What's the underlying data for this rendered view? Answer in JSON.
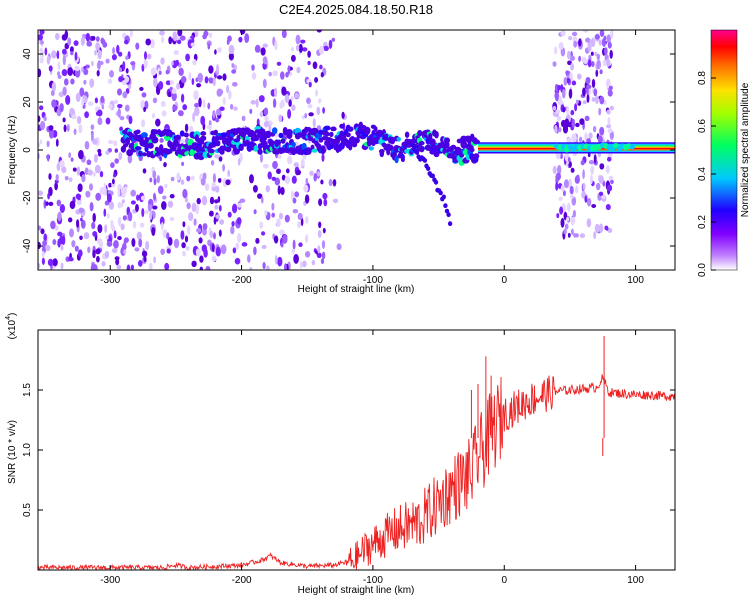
{
  "title": "C2E4.2025.084.18.50.R18",
  "colors": {
    "snr_line": "#ee2222",
    "spectrogram_scatter": "#6a00d8",
    "colormap": [
      "#ffffff",
      "#a000ff",
      "#2000ff",
      "#00c8ff",
      "#00ff40",
      "#ffff00",
      "#ff8000",
      "#ff0000",
      "#ff00a0"
    ]
  },
  "chart_data": [
    {
      "type": "heatmap",
      "title": "",
      "xlabel": "Height of straight line (km)",
      "ylabel": "Frequency (Hz)",
      "xlim": [
        -355,
        130
      ],
      "ylim": [
        -50,
        50
      ],
      "xticks": [
        -300,
        -200,
        -100,
        0,
        100
      ],
      "yticks": [
        -40,
        -20,
        0,
        20,
        40
      ],
      "colorbar": {
        "label": "Normalized spectral amplitude",
        "range": [
          0,
          1
        ],
        "ticks": [
          0.0,
          0.2,
          0.4,
          0.6,
          0.8
        ]
      },
      "main_trace": [
        {
          "x": -290,
          "y": 3
        },
        {
          "x": -260,
          "y": 3
        },
        {
          "x": -230,
          "y": 2
        },
        {
          "x": -200,
          "y": 4
        },
        {
          "x": -170,
          "y": 4
        },
        {
          "x": -140,
          "y": 4
        },
        {
          "x": -115,
          "y": 6
        },
        {
          "x": -100,
          "y": 5
        },
        {
          "x": -90,
          "y": 2
        },
        {
          "x": -80,
          "y": 0
        },
        {
          "x": -65,
          "y": 4
        },
        {
          "x": -50,
          "y": 2
        },
        {
          "x": -40,
          "y": -2
        },
        {
          "x": -30,
          "y": 0
        },
        {
          "x": -20,
          "y": 1
        },
        {
          "x": 0,
          "y": 1
        },
        {
          "x": 40,
          "y": 1
        },
        {
          "x": 80,
          "y": 1
        },
        {
          "x": 130,
          "y": 1
        }
      ],
      "descending_branch": [
        {
          "x": -70,
          "y": 2
        },
        {
          "x": -60,
          "y": -6
        },
        {
          "x": -52,
          "y": -14
        },
        {
          "x": -45,
          "y": -22
        },
        {
          "x": -40,
          "y": -32
        }
      ]
    },
    {
      "type": "line",
      "title": "",
      "xlabel": "Height of straight line (km)",
      "ylabel": "SNR (10 * v/v)",
      "y_multiplier": "(x10",
      "y_multiplier_exp": "4",
      "y_multiplier_close": ")",
      "xlim": [
        -355,
        130
      ],
      "ylim": [
        0,
        2
      ],
      "xticks": [
        -300,
        -200,
        -100,
        0,
        100
      ],
      "yticks": [
        0.5,
        1.0,
        1.5
      ],
      "series": [
        {
          "x": [
            -355,
            -300,
            -260,
            -250,
            -240,
            -220,
            -200,
            -185,
            -178,
            -170,
            -150,
            -130,
            -115,
            -105,
            -95,
            -85,
            -75,
            -65,
            -55,
            -45,
            -35,
            -25,
            -20,
            -15,
            -10,
            -5,
            0,
            10,
            20,
            30,
            40,
            50,
            60,
            70,
            75,
            80,
            90,
            100,
            110,
            120,
            130
          ],
          "y": [
            0.02,
            0.02,
            0.02,
            0.04,
            0.02,
            0.03,
            0.04,
            0.08,
            0.12,
            0.06,
            0.03,
            0.04,
            0.08,
            0.18,
            0.25,
            0.32,
            0.36,
            0.4,
            0.5,
            0.62,
            0.72,
            0.8,
            0.95,
            1.02,
            1.15,
            1.22,
            1.3,
            1.36,
            1.42,
            1.46,
            1.49,
            1.5,
            1.51,
            1.52,
            1.6,
            1.48,
            1.47,
            1.46,
            1.46,
            1.45,
            1.45
          ]
        }
      ],
      "spikes": [
        {
          "x": -25,
          "y": 1.5
        },
        {
          "x": -20,
          "y": 1.55
        },
        {
          "x": -14,
          "y": 1.78
        },
        {
          "x": -10,
          "y": 1.62
        },
        {
          "x": 76,
          "y": 1.95
        },
        {
          "x": 75,
          "y": 0.95
        }
      ]
    }
  ]
}
